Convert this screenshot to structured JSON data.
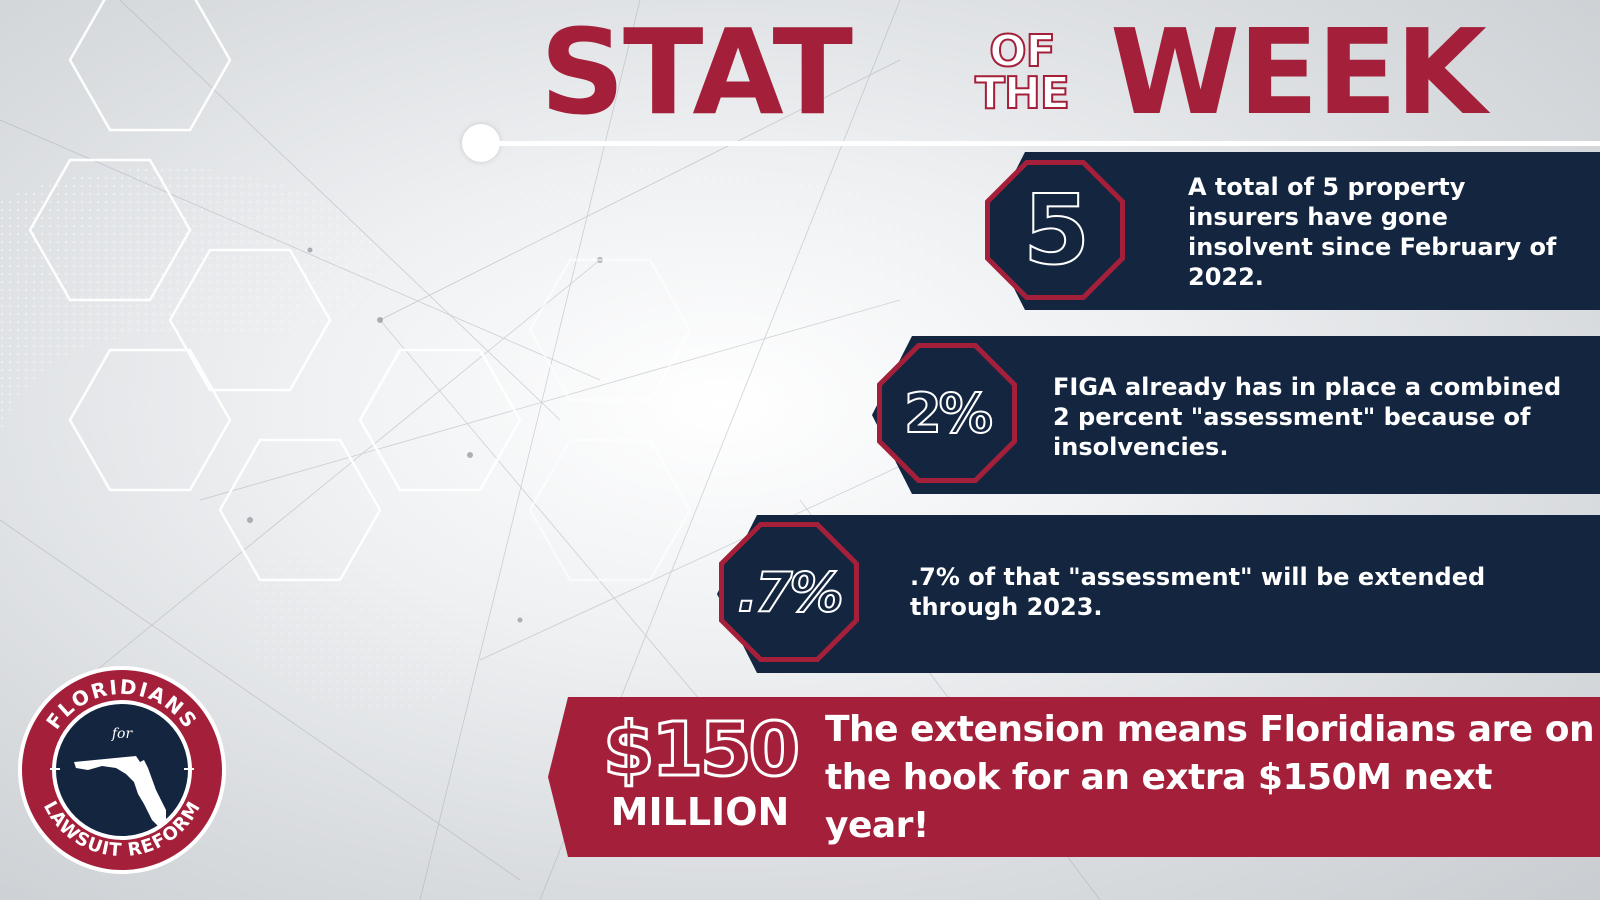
{
  "title": {
    "word1": "STAT",
    "small1": "OF",
    "small2": "THE",
    "word2": "WEEK"
  },
  "stats": [
    {
      "figure": "5",
      "text": "A total of 5 property insurers have gone insolvent since February of 2022."
    },
    {
      "figure": "2%",
      "text": "FIGA already has in place a combined 2 percent \"assessment\" because of insolvencies."
    },
    {
      "figure": ".7%",
      "text": ".7% of that \"assessment\" will be extended through 2023."
    }
  ],
  "highlight": {
    "figure": "$150",
    "unit": "MILLION",
    "text": "The extension means Floridians are on the hook for an extra $150M next year!"
  },
  "logo": {
    "top_text": "FLORIDIANS",
    "middle_text": "for",
    "bottom_text": "LAWSUIT REFORM"
  },
  "colors": {
    "brand_red": "#a4203a",
    "navy": "#13253f",
    "white": "#ffffff"
  }
}
